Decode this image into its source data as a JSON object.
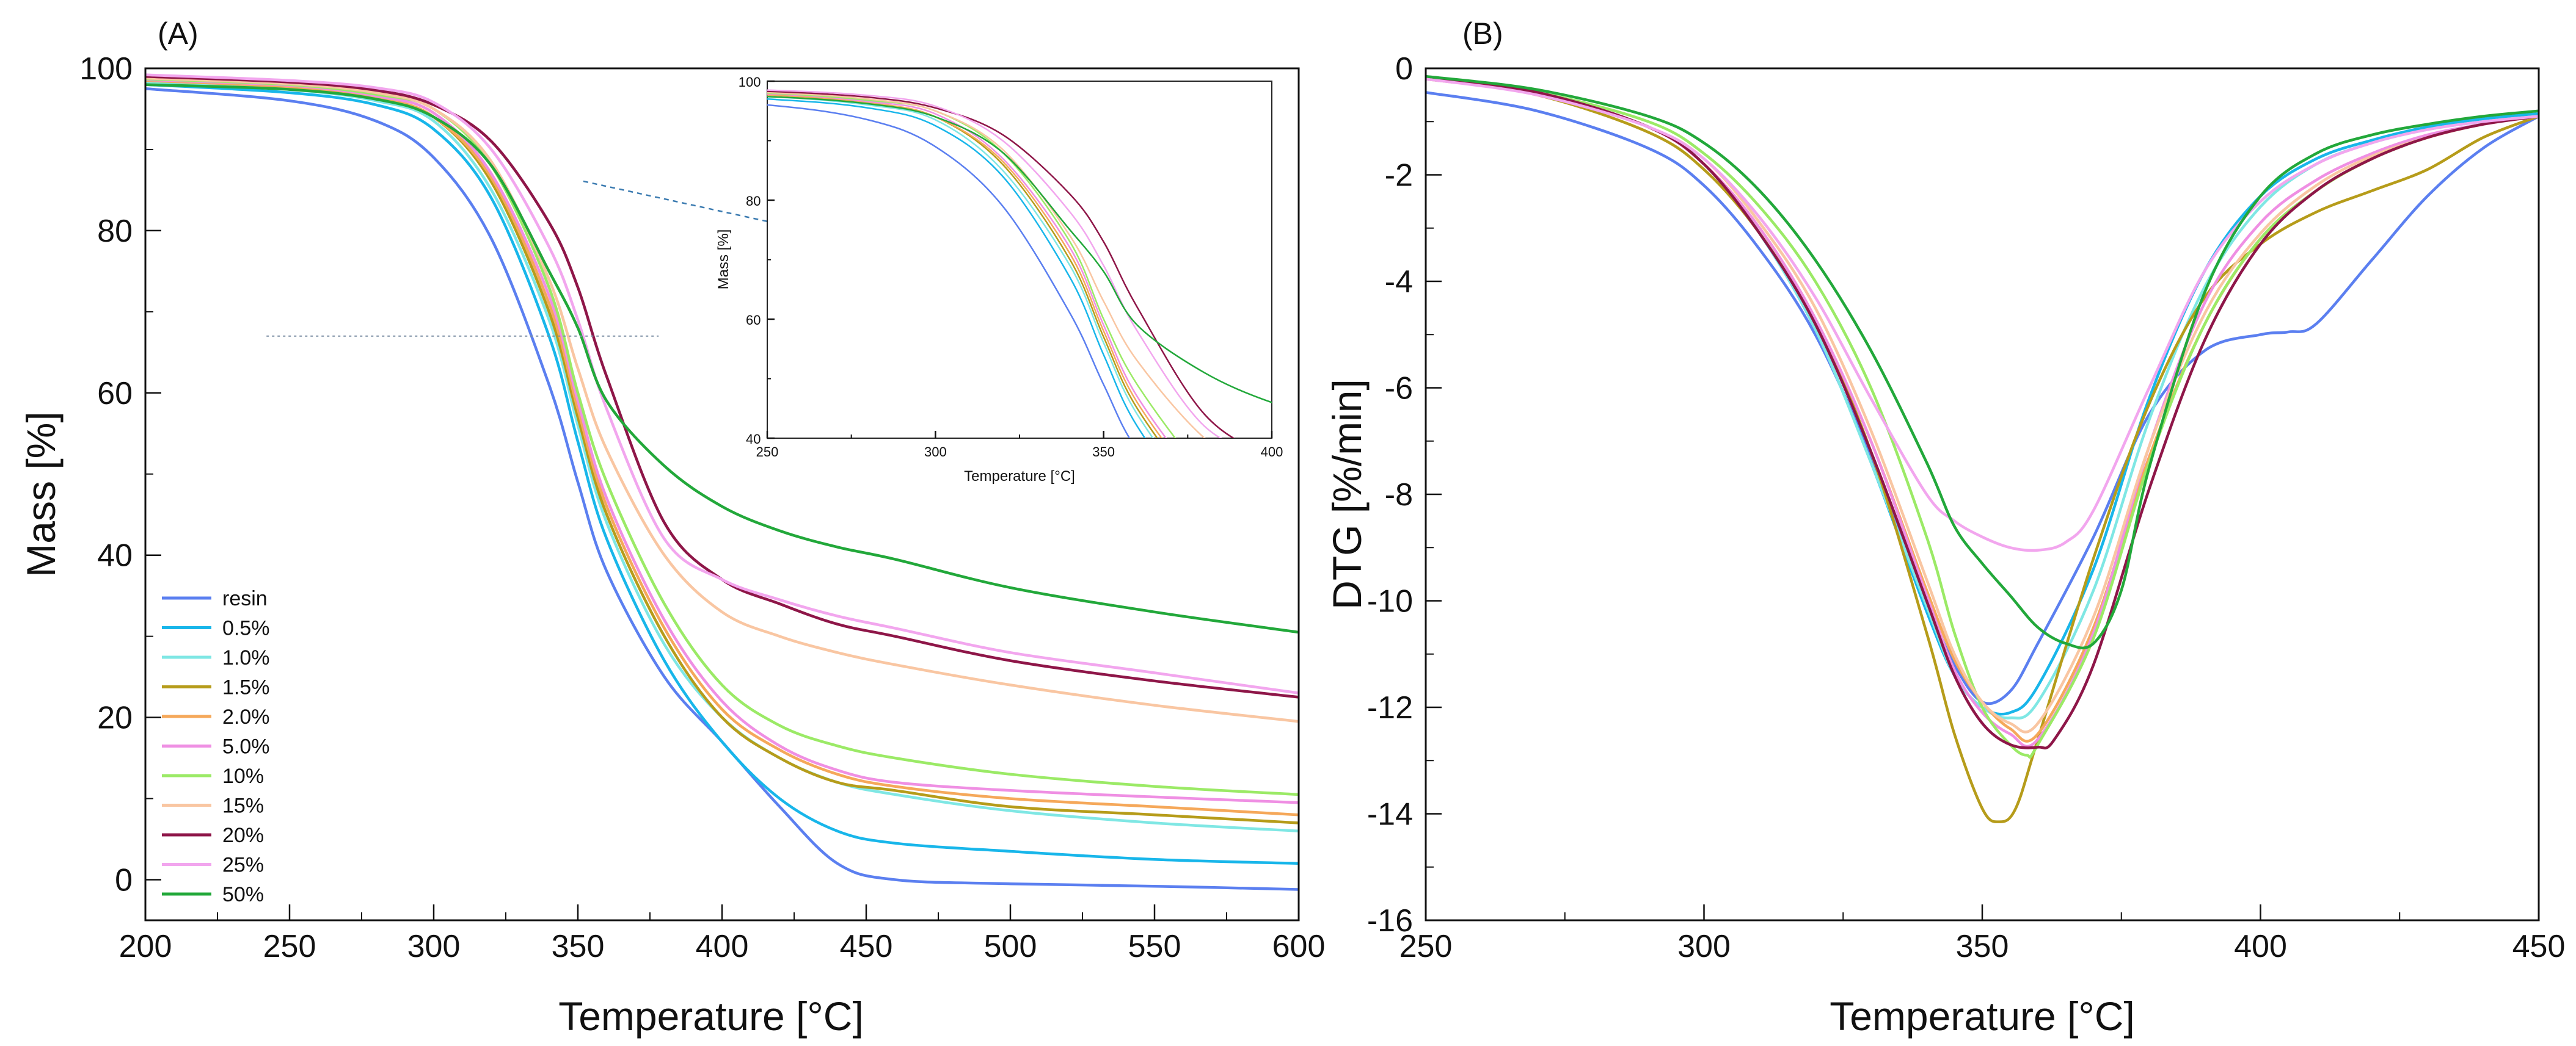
{
  "figure": {
    "panel_a_tag": "(A)",
    "panel_b_tag": "(B)"
  },
  "chart_data": [
    {
      "type": "line",
      "panel": "(A)",
      "title": "",
      "xlabel": "Temperature [°C]",
      "ylabel": "Mass [%]",
      "xlim": [
        200,
        600
      ],
      "ylim": [
        -5,
        100
      ],
      "xticks": [
        200,
        250,
        300,
        350,
        400,
        450,
        500,
        550,
        600
      ],
      "yticks": [
        0,
        20,
        40,
        60,
        80,
        100
      ],
      "legend_position": "bottom-left",
      "series": [
        {
          "name": "resin",
          "color": "#5b7ff0",
          "x": [
            200,
            250,
            280,
            300,
            320,
            340,
            350,
            360,
            380,
            400,
            420,
            440,
            460,
            500,
            550,
            600
          ],
          "y": [
            97.5,
            96,
            93.5,
            89,
            79,
            61,
            49,
            38,
            25,
            17,
            9,
            2,
            0,
            -0.5,
            -0.8,
            -1.2
          ]
        },
        {
          "name": "0.5%",
          "color": "#18b6ea",
          "x": [
            200,
            250,
            280,
            300,
            320,
            340,
            350,
            360,
            380,
            400,
            420,
            440,
            460,
            500,
            550,
            600
          ],
          "y": [
            98,
            97,
            95.5,
            92.5,
            84,
            67,
            54,
            42,
            27,
            17,
            10,
            6,
            4.5,
            3.5,
            2.5,
            2
          ]
        },
        {
          "name": "1.0%",
          "color": "#7fe7e4",
          "x": [
            200,
            250,
            280,
            300,
            320,
            340,
            350,
            360,
            380,
            400,
            420,
            440,
            460,
            500,
            550,
            600
          ],
          "y": [
            98.3,
            97.4,
            96,
            93.5,
            85,
            69,
            56,
            44,
            29,
            20,
            15,
            12,
            10.5,
            8.5,
            7,
            6
          ]
        },
        {
          "name": "1.5%",
          "color": "#b69c1a",
          "x": [
            200,
            250,
            280,
            300,
            320,
            340,
            350,
            360,
            380,
            400,
            420,
            440,
            460,
            500,
            550,
            600
          ],
          "y": [
            98.5,
            97.7,
            96.3,
            94,
            86,
            70,
            57,
            45,
            30,
            20,
            15,
            12,
            11,
            9,
            8,
            7
          ]
        },
        {
          "name": "2.0%",
          "color": "#f5a85a",
          "x": [
            200,
            250,
            280,
            300,
            320,
            340,
            350,
            360,
            380,
            400,
            420,
            440,
            460,
            500,
            550,
            600
          ],
          "y": [
            98.5,
            97.7,
            96.4,
            94,
            86.5,
            71,
            58,
            46,
            31,
            21,
            16,
            13,
            11.5,
            10,
            9,
            8
          ]
        },
        {
          "name": "5.0%",
          "color": "#ef8fe3",
          "x": [
            200,
            250,
            280,
            300,
            320,
            340,
            350,
            360,
            380,
            400,
            420,
            440,
            460,
            500,
            550,
            600
          ],
          "y": [
            98.6,
            97.9,
            96.6,
            94.5,
            87,
            72,
            59,
            47,
            32,
            22,
            16.5,
            13.5,
            12,
            11,
            10.2,
            9.5
          ]
        },
        {
          "name": "10%",
          "color": "#9bea66",
          "x": [
            200,
            250,
            280,
            300,
            320,
            340,
            350,
            360,
            380,
            400,
            420,
            440,
            460,
            500,
            550,
            600
          ],
          "y": [
            98.7,
            98,
            96.8,
            95,
            88,
            73,
            60,
            49,
            34,
            24,
            19,
            16.5,
            15,
            13,
            11.5,
            10.5
          ]
        },
        {
          "name": "15%",
          "color": "#f9c6a2",
          "x": [
            200,
            250,
            280,
            300,
            320,
            340,
            350,
            360,
            380,
            400,
            420,
            440,
            460,
            500,
            550,
            600
          ],
          "y": [
            98.8,
            98.1,
            97,
            95,
            88.5,
            74,
            63,
            53,
            40,
            33,
            30,
            28,
            26.5,
            24,
            21.5,
            19.5
          ]
        },
        {
          "name": "20%",
          "color": "#8e1648",
          "x": [
            200,
            250,
            280,
            300,
            320,
            340,
            350,
            360,
            380,
            400,
            420,
            440,
            460,
            500,
            550,
            600
          ],
          "y": [
            99,
            98.3,
            97.3,
            95.5,
            91,
            81,
            73,
            62,
            44,
            37,
            34,
            31.5,
            30,
            27,
            24.5,
            22.5
          ]
        },
        {
          "name": "25%",
          "color": "#f2a6ee",
          "x": [
            200,
            250,
            280,
            300,
            320,
            340,
            350,
            360,
            380,
            400,
            420,
            440,
            460,
            500,
            550,
            600
          ],
          "y": [
            99.2,
            98.5,
            97.6,
            95.8,
            90,
            78,
            69,
            58,
            42,
            37,
            34.5,
            32.5,
            31,
            28,
            25.5,
            23
          ]
        },
        {
          "name": "50%",
          "color": "#22a83a",
          "x": [
            200,
            250,
            280,
            300,
            320,
            340,
            350,
            360,
            380,
            400,
            420,
            440,
            460,
            500,
            550,
            600
          ],
          "y": [
            98,
            97.4,
            96.2,
            94,
            88,
            75,
            68,
            59,
            51,
            46,
            43,
            41,
            39.5,
            36,
            33,
            30.5
          ]
        }
      ],
      "inset": {
        "xlabel": "Temperature [°C]",
        "ylabel": "Mass [%]",
        "xlim": [
          250,
          400
        ],
        "ylim": [
          40,
          100
        ],
        "xticks": [
          250,
          300,
          350,
          400
        ],
        "yticks": [
          40,
          60,
          80,
          100
        ],
        "zoom_region_y": 67
      }
    },
    {
      "type": "line",
      "panel": "(B)",
      "title": "",
      "xlabel": "Temperature [°C]",
      "ylabel": "DTG [%/min]",
      "xlim": [
        250,
        450
      ],
      "ylim": [
        -16,
        0
      ],
      "xticks": [
        250,
        300,
        350,
        400,
        450
      ],
      "yticks": [
        0,
        -2,
        -4,
        -6,
        -8,
        -10,
        -12,
        -14,
        -16
      ],
      "series": [
        {
          "name": "resin",
          "color": "#5b7ff0",
          "x": [
            250,
            270,
            290,
            300,
            310,
            320,
            330,
            340,
            345,
            350,
            355,
            360,
            370,
            380,
            390,
            400,
            405,
            410,
            420,
            430,
            440,
            450
          ],
          "y": [
            -0.45,
            -0.8,
            -1.5,
            -2.2,
            -3.4,
            -5,
            -7.3,
            -10,
            -11.2,
            -11.9,
            -11.7,
            -10.8,
            -8.8,
            -6.5,
            -5.3,
            -5.0,
            -4.95,
            -4.8,
            -3.6,
            -2.4,
            -1.5,
            -0.9
          ]
        },
        {
          "name": "0.5%",
          "color": "#18b6ea",
          "x": [
            250,
            270,
            290,
            300,
            310,
            320,
            330,
            340,
            345,
            350,
            355,
            360,
            370,
            380,
            390,
            400,
            410,
            420,
            430,
            440,
            450
          ],
          "y": [
            -0.2,
            -0.45,
            -1.1,
            -1.8,
            -3.1,
            -4.9,
            -7.4,
            -10.2,
            -11.4,
            -12,
            -12.1,
            -11.6,
            -9.4,
            -6.2,
            -3.8,
            -2.4,
            -1.7,
            -1.35,
            -1.1,
            -0.95,
            -0.85
          ]
        },
        {
          "name": "1.0%",
          "color": "#7fe7e4",
          "x": [
            250,
            270,
            290,
            300,
            310,
            320,
            330,
            340,
            345,
            350,
            355,
            360,
            370,
            380,
            390,
            400,
            410,
            420,
            430,
            440,
            450
          ],
          "y": [
            -0.2,
            -0.45,
            -1.1,
            -1.8,
            -3.1,
            -4.9,
            -7.4,
            -10.1,
            -11.4,
            -12,
            -12.2,
            -11.9,
            -9.8,
            -6.6,
            -4.1,
            -2.6,
            -1.8,
            -1.4,
            -1.15,
            -1,
            -0.9
          ]
        },
        {
          "name": "1.5%",
          "color": "#b69c1a",
          "x": [
            250,
            270,
            290,
            300,
            310,
            320,
            330,
            340,
            345,
            350,
            353,
            356,
            360,
            370,
            380,
            390,
            400,
            410,
            420,
            430,
            440,
            450
          ],
          "y": [
            -0.2,
            -0.5,
            -1.2,
            -1.9,
            -3.1,
            -4.8,
            -7.2,
            -10.6,
            -12.5,
            -13.9,
            -14.15,
            -13.9,
            -12.6,
            -9.2,
            -6.3,
            -4.3,
            -3.3,
            -2.7,
            -2.3,
            -1.9,
            -1.3,
            -0.9
          ]
        },
        {
          "name": "2.0%",
          "color": "#f5a85a",
          "x": [
            250,
            270,
            290,
            300,
            310,
            320,
            330,
            340,
            345,
            350,
            355,
            360,
            370,
            380,
            390,
            400,
            410,
            420,
            430,
            440,
            450
          ],
          "y": [
            -0.2,
            -0.45,
            -1.1,
            -1.8,
            -3.0,
            -4.7,
            -7.0,
            -9.8,
            -11.1,
            -11.9,
            -12.4,
            -12.5,
            -10.5,
            -7.3,
            -4.8,
            -3.2,
            -2.3,
            -1.7,
            -1.3,
            -1.05,
            -0.9
          ]
        },
        {
          "name": "5.0%",
          "color": "#ef8fe3",
          "x": [
            250,
            270,
            290,
            300,
            310,
            320,
            330,
            340,
            345,
            350,
            355,
            360,
            370,
            380,
            390,
            400,
            410,
            420,
            430,
            440,
            450
          ],
          "y": [
            -0.2,
            -0.45,
            -1.1,
            -1.8,
            -3.0,
            -4.7,
            -7.0,
            -9.9,
            -11.3,
            -12.1,
            -12.5,
            -12.6,
            -10.6,
            -7.1,
            -4.4,
            -2.9,
            -2.1,
            -1.6,
            -1.25,
            -1.05,
            -0.9
          ]
        },
        {
          "name": "10%",
          "color": "#9bea66",
          "x": [
            250,
            270,
            290,
            300,
            310,
            320,
            330,
            340,
            345,
            350,
            355,
            358,
            360,
            370,
            380,
            390,
            400,
            410,
            420,
            430,
            440,
            450
          ],
          "y": [
            -0.2,
            -0.45,
            -1.0,
            -1.6,
            -2.6,
            -4.0,
            -6.0,
            -8.8,
            -10.6,
            -12,
            -12.7,
            -12.9,
            -12.7,
            -10.7,
            -7.4,
            -4.8,
            -3.2,
            -2.3,
            -1.7,
            -1.3,
            -1.05,
            -0.9
          ]
        },
        {
          "name": "15%",
          "color": "#f9c6a2",
          "x": [
            250,
            270,
            290,
            300,
            310,
            320,
            330,
            340,
            345,
            350,
            355,
            360,
            370,
            380,
            390,
            400,
            410,
            420,
            430,
            440,
            450
          ],
          "y": [
            -0.2,
            -0.45,
            -1.1,
            -1.7,
            -2.9,
            -4.5,
            -6.8,
            -9.6,
            -11,
            -11.9,
            -12.3,
            -12.3,
            -10.3,
            -7.1,
            -4.6,
            -3.1,
            -2.2,
            -1.65,
            -1.3,
            -1.05,
            -0.9
          ]
        },
        {
          "name": "20%",
          "color": "#8e1648",
          "x": [
            250,
            270,
            290,
            300,
            310,
            320,
            330,
            340,
            345,
            350,
            355,
            360,
            363,
            370,
            380,
            390,
            400,
            410,
            420,
            430,
            440,
            450
          ],
          "y": [
            -0.2,
            -0.45,
            -1.1,
            -1.8,
            -3.1,
            -4.8,
            -7.2,
            -10,
            -11.4,
            -12.3,
            -12.7,
            -12.75,
            -12.6,
            -11.2,
            -7.9,
            -5.1,
            -3.3,
            -2.3,
            -1.7,
            -1.3,
            -1.05,
            -0.9
          ]
        },
        {
          "name": "25%",
          "color": "#f2a6ee",
          "x": [
            250,
            270,
            290,
            300,
            310,
            320,
            330,
            340,
            345,
            350,
            355,
            360,
            365,
            370,
            380,
            390,
            400,
            410,
            420,
            430,
            440,
            450
          ],
          "y": [
            -0.2,
            -0.5,
            -1.1,
            -1.7,
            -2.8,
            -4.3,
            -6.2,
            -8,
            -8.5,
            -8.8,
            -9.0,
            -9.05,
            -8.9,
            -8.3,
            -6,
            -3.8,
            -2.5,
            -1.8,
            -1.4,
            -1.15,
            -1,
            -0.9
          ]
        },
        {
          "name": "50%",
          "color": "#22a83a",
          "x": [
            250,
            270,
            290,
            300,
            310,
            320,
            330,
            340,
            345,
            350,
            355,
            360,
            365,
            370,
            375,
            380,
            390,
            400,
            410,
            420,
            430,
            440,
            450
          ],
          "y": [
            -0.15,
            -0.4,
            -0.9,
            -1.4,
            -2.3,
            -3.6,
            -5.3,
            -7.4,
            -8.6,
            -9.3,
            -9.9,
            -10.5,
            -10.8,
            -10.8,
            -9.8,
            -7.5,
            -4.2,
            -2.4,
            -1.6,
            -1.25,
            -1.05,
            -0.9,
            -0.8
          ]
        }
      ]
    }
  ]
}
